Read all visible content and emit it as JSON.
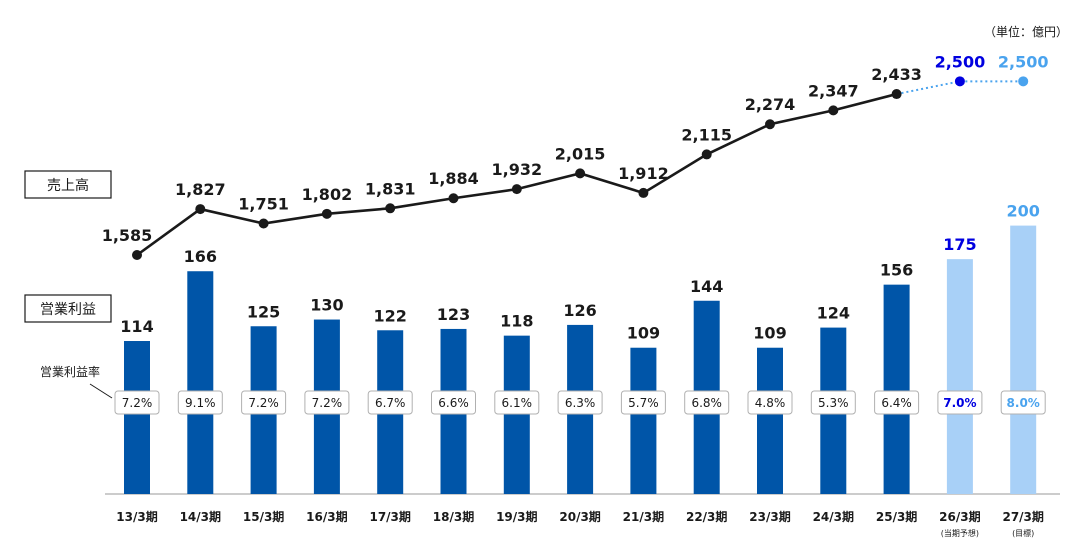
{
  "unit_label": "（単位：億円）",
  "labels": {
    "sales": "売上高",
    "operating_profit": "営業利益",
    "operating_margin": "営業利益率"
  },
  "colors": {
    "actual_bar": "#0055a8",
    "forecast_bar": "#a8d0f7",
    "actual_line": "#1a1a1a",
    "forecast_2026": "#0000e0",
    "forecast_2027": "#4aa3ee",
    "text": "#1a1a1a"
  },
  "chart_data": {
    "type": "bar+line",
    "categories": [
      "13/3期",
      "14/3期",
      "15/3期",
      "16/3期",
      "17/3期",
      "18/3期",
      "19/3期",
      "20/3期",
      "21/3期",
      "22/3期",
      "23/3期",
      "24/3期",
      "25/3期",
      "26/3期",
      "27/3期"
    ],
    "category_notes": [
      "",
      "",
      "",
      "",
      "",
      "",
      "",
      "",
      "",
      "",
      "",
      "",
      "",
      "(当期予想)",
      "(目標)"
    ],
    "series": [
      {
        "name": "売上高",
        "type": "line",
        "values": [
          1585,
          1827,
          1751,
          1802,
          1831,
          1884,
          1932,
          2015,
          1912,
          2115,
          2274,
          2347,
          2433,
          2500,
          2500
        ],
        "value_labels": [
          "1,585",
          "1,827",
          "1,751",
          "1,802",
          "1,831",
          "1,884",
          "1,932",
          "2,015",
          "1,912",
          "2,115",
          "2,274",
          "2,347",
          "2,433",
          "2,500",
          "2,500"
        ]
      },
      {
        "name": "営業利益",
        "type": "bar",
        "values": [
          114,
          166,
          125,
          130,
          122,
          123,
          118,
          126,
          109,
          144,
          109,
          124,
          156,
          175,
          200
        ],
        "value_labels": [
          "114",
          "166",
          "125",
          "130",
          "122",
          "123",
          "118",
          "126",
          "109",
          "144",
          "109",
          "124",
          "156",
          "175",
          "200"
        ]
      },
      {
        "name": "営業利益率",
        "type": "label",
        "values": [
          7.2,
          9.1,
          7.2,
          7.2,
          6.7,
          6.6,
          6.1,
          6.3,
          5.7,
          6.8,
          4.8,
          5.3,
          6.4,
          7.0,
          8.0
        ],
        "value_labels": [
          "7.2%",
          "9.1%",
          "7.2%",
          "7.2%",
          "6.7%",
          "6.6%",
          "6.1%",
          "6.3%",
          "5.7%",
          "6.8%",
          "4.8%",
          "5.3%",
          "6.4%",
          "7.0%",
          "8.0%"
        ]
      }
    ],
    "forecast_index_start": 13
  }
}
